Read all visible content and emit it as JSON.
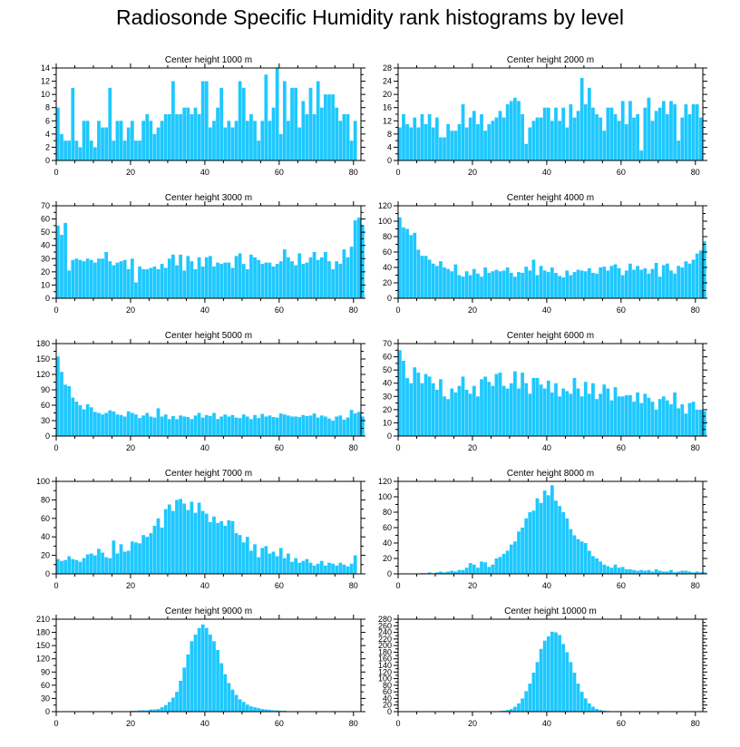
{
  "title": "Radiosonde Specific Humidity rank histograms by level",
  "colors": {
    "bar": "#1ec8ff",
    "bar_edge": "#0fb4ec",
    "axis": "#000000"
  },
  "chart_data": [
    {
      "type": "bar",
      "title": "Center height 1000 m",
      "xlabel": "",
      "ylabel": "",
      "xlim": [
        0,
        82
      ],
      "ylim": [
        0,
        14
      ],
      "yticks": [
        0,
        2,
        4,
        6,
        8,
        10,
        12,
        14
      ],
      "xticks": [
        0,
        20,
        40,
        60,
        80
      ],
      "values": [
        8,
        4,
        3,
        3,
        11,
        3,
        2,
        6,
        6,
        3,
        2,
        6,
        5,
        5,
        11,
        3,
        6,
        6,
        3,
        5,
        6,
        3,
        3,
        6,
        7,
        6,
        4,
        5,
        6,
        7,
        7,
        12,
        7,
        7,
        8,
        8,
        7,
        8,
        7,
        12,
        12,
        5,
        6,
        8,
        11,
        5,
        6,
        5,
        6,
        12,
        11,
        6,
        7,
        6,
        3,
        6,
        13,
        6,
        8,
        14,
        4,
        12,
        6,
        11,
        11,
        5,
        9,
        7,
        11,
        7,
        12,
        8,
        10,
        10,
        10,
        8,
        6,
        7,
        7,
        3,
        6
      ]
    },
    {
      "type": "bar",
      "title": "Center height 2000 m",
      "xlabel": "",
      "ylabel": "",
      "xlim": [
        0,
        82
      ],
      "ylim": [
        0,
        28
      ],
      "yticks": [
        0,
        4,
        8,
        12,
        16,
        20,
        24,
        28
      ],
      "xticks": [
        0,
        20,
        40,
        60,
        80
      ],
      "values": [
        10,
        14,
        11,
        10,
        13,
        10,
        14,
        11,
        14,
        10,
        13,
        7,
        7,
        11,
        9,
        9,
        11,
        17,
        10,
        13,
        15,
        11,
        14,
        9,
        11,
        12,
        13,
        15,
        13,
        17,
        18,
        19,
        18,
        14,
        5,
        10,
        12,
        13,
        13,
        16,
        16,
        12,
        16,
        12,
        16,
        10,
        17,
        13,
        15,
        25,
        17,
        22,
        16,
        14,
        13,
        9,
        16,
        16,
        14,
        12,
        18,
        11,
        18,
        13,
        14,
        3,
        16,
        19,
        12,
        15,
        16,
        18,
        14,
        18,
        17,
        6,
        13,
        17,
        14,
        17,
        17,
        13
      ]
    },
    {
      "type": "bar",
      "title": "Center height 3000 m",
      "xlabel": "",
      "ylabel": "",
      "xlim": [
        0,
        82
      ],
      "ylim": [
        0,
        70
      ],
      "yticks": [
        0,
        10,
        20,
        30,
        40,
        50,
        60,
        70
      ],
      "xticks": [
        0,
        20,
        40,
        60,
        80
      ],
      "values": [
        55,
        48,
        57,
        21,
        29,
        30,
        29,
        28,
        30,
        29,
        27,
        30,
        30,
        35,
        28,
        25,
        27,
        28,
        29,
        22,
        30,
        12,
        24,
        22,
        22,
        23,
        24,
        22,
        26,
        23,
        30,
        33,
        25,
        33,
        21,
        32,
        28,
        22,
        31,
        24,
        31,
        32,
        24,
        27,
        26,
        27,
        27,
        23,
        32,
        34,
        26,
        22,
        33,
        31,
        29,
        26,
        27,
        27,
        24,
        26,
        28,
        37,
        31,
        28,
        25,
        34,
        26,
        27,
        31,
        35,
        29,
        31,
        35,
        28,
        22,
        28,
        26,
        37,
        31,
        39,
        59,
        61,
        55
      ]
    },
    {
      "type": "bar",
      "title": "Center height 4000 m",
      "xlabel": "",
      "ylabel": "",
      "xlim": [
        0,
        82
      ],
      "ylim": [
        0,
        120
      ],
      "yticks": [
        0,
        20,
        40,
        60,
        80,
        100,
        120
      ],
      "xticks": [
        0,
        20,
        40,
        60,
        80
      ],
      "values": [
        105,
        92,
        90,
        82,
        85,
        63,
        55,
        55,
        50,
        45,
        42,
        48,
        40,
        38,
        35,
        44,
        30,
        28,
        35,
        30,
        38,
        32,
        28,
        40,
        33,
        35,
        37,
        35,
        36,
        40,
        33,
        28,
        34,
        33,
        41,
        36,
        50,
        30,
        42,
        36,
        34,
        40,
        33,
        29,
        27,
        36,
        30,
        34,
        37,
        36,
        35,
        39,
        33,
        32,
        40,
        41,
        36,
        42,
        44,
        39,
        30,
        36,
        45,
        37,
        42,
        37,
        39,
        32,
        38,
        46,
        28,
        43,
        45,
        36,
        32,
        42,
        40,
        48,
        45,
        50,
        58,
        62,
        74
      ]
    },
    {
      "type": "bar",
      "title": "Center height 5000 m",
      "xlabel": "",
      "ylabel": "",
      "xlim": [
        0,
        82
      ],
      "ylim": [
        0,
        180
      ],
      "yticks": [
        0,
        30,
        60,
        90,
        120,
        150,
        180
      ],
      "xticks": [
        0,
        20,
        40,
        60,
        80
      ],
      "values": [
        155,
        125,
        100,
        97,
        75,
        67,
        60,
        52,
        62,
        56,
        47,
        45,
        42,
        45,
        50,
        48,
        42,
        41,
        38,
        48,
        45,
        42,
        35,
        40,
        45,
        38,
        36,
        54,
        38,
        42,
        33,
        39,
        33,
        40,
        38,
        37,
        33,
        40,
        45,
        36,
        41,
        39,
        45,
        33,
        38,
        42,
        38,
        41,
        36,
        35,
        42,
        38,
        33,
        41,
        35,
        43,
        38,
        40,
        37,
        36,
        44,
        42,
        40,
        38,
        38,
        37,
        41,
        39,
        40,
        44,
        36,
        40,
        38,
        34,
        30,
        38,
        40,
        32,
        36,
        51,
        44,
        47,
        38
      ]
    },
    {
      "type": "bar",
      "title": "Center height 6000 m",
      "xlabel": "",
      "ylabel": "",
      "xlim": [
        0,
        82
      ],
      "ylim": [
        0,
        70
      ],
      "yticks": [
        0,
        10,
        20,
        30,
        40,
        50,
        60,
        70
      ],
      "xticks": [
        0,
        20,
        40,
        60,
        80
      ],
      "values": [
        65,
        57,
        44,
        40,
        52,
        48,
        40,
        47,
        45,
        40,
        35,
        43,
        30,
        28,
        36,
        33,
        38,
        45,
        35,
        32,
        38,
        30,
        43,
        45,
        41,
        38,
        47,
        48,
        38,
        36,
        40,
        49,
        36,
        48,
        40,
        32,
        44,
        44,
        39,
        36,
        42,
        33,
        40,
        30,
        36,
        34,
        32,
        44,
        36,
        30,
        41,
        32,
        40,
        28,
        32,
        39,
        36,
        27,
        37,
        30,
        30,
        31,
        31,
        26,
        33,
        25,
        32,
        29,
        26,
        20,
        28,
        30,
        27,
        24,
        33,
        21,
        24,
        17,
        25,
        26,
        20,
        20,
        19
      ]
    },
    {
      "type": "bar",
      "title": "Center height 7000 m",
      "xlabel": "",
      "ylabel": "",
      "xlim": [
        0,
        82
      ],
      "ylim": [
        0,
        100
      ],
      "yticks": [
        0,
        20,
        40,
        60,
        80,
        100
      ],
      "xticks": [
        0,
        20,
        40,
        60,
        80
      ],
      "values": [
        16,
        14,
        15,
        19,
        16,
        15,
        13,
        17,
        21,
        22,
        20,
        27,
        23,
        18,
        17,
        36,
        22,
        32,
        24,
        25,
        35,
        34,
        33,
        42,
        40,
        44,
        52,
        60,
        50,
        70,
        75,
        68,
        80,
        81,
        76,
        69,
        78,
        66,
        77,
        68,
        65,
        56,
        62,
        55,
        57,
        52,
        58,
        57,
        44,
        42,
        34,
        40,
        25,
        32,
        18,
        28,
        30,
        22,
        24,
        19,
        28,
        17,
        22,
        13,
        17,
        12,
        14,
        16,
        12,
        9,
        11,
        14,
        9,
        12,
        11,
        9,
        12,
        10,
        8,
        11,
        20
      ]
    },
    {
      "type": "bar",
      "title": "Center height 8000 m",
      "xlabel": "",
      "ylabel": "",
      "xlim": [
        0,
        82
      ],
      "ylim": [
        0,
        120
      ],
      "yticks": [
        0,
        20,
        40,
        60,
        80,
        100,
        120
      ],
      "xticks": [
        0,
        20,
        40,
        60,
        80
      ],
      "values": [
        0,
        0,
        0,
        0,
        0,
        0,
        1,
        1,
        2,
        1,
        2,
        3,
        2,
        3,
        4,
        3,
        5,
        5,
        8,
        14,
        12,
        8,
        16,
        15,
        9,
        12,
        20,
        22,
        26,
        30,
        38,
        42,
        55,
        60,
        72,
        80,
        82,
        98,
        92,
        108,
        102,
        115,
        95,
        88,
        80,
        72,
        58,
        50,
        45,
        42,
        40,
        30,
        23,
        20,
        16,
        12,
        10,
        8,
        12,
        8,
        9,
        6,
        6,
        5,
        4,
        5,
        4,
        5,
        3,
        6,
        4,
        3,
        3,
        5,
        2,
        3,
        4,
        4,
        3,
        2,
        3,
        2,
        2
      ]
    },
    {
      "type": "bar",
      "title": "Center height 9000 m",
      "xlabel": "",
      "ylabel": "",
      "xlim": [
        0,
        82
      ],
      "ylim": [
        0,
        210
      ],
      "yticks": [
        0,
        30,
        60,
        90,
        120,
        150,
        180,
        210
      ],
      "xticks": [
        0,
        20,
        40,
        60,
        80
      ],
      "values": [
        0,
        0,
        0,
        0,
        0,
        0,
        0,
        0,
        0,
        0,
        0,
        0,
        0,
        0,
        0,
        0,
        0,
        1,
        1,
        1,
        2,
        2,
        3,
        3,
        3,
        5,
        5,
        6,
        10,
        15,
        22,
        32,
        45,
        70,
        100,
        130,
        160,
        175,
        190,
        198,
        190,
        175,
        160,
        140,
        110,
        85,
        65,
        50,
        38,
        28,
        22,
        16,
        12,
        10,
        8,
        6,
        5,
        4,
        3,
        3,
        2,
        2,
        1,
        1,
        1,
        1,
        1,
        0,
        0,
        0,
        0,
        0,
        0,
        0,
        0,
        0,
        0,
        0,
        0,
        0,
        0
      ]
    },
    {
      "type": "bar",
      "title": "Center height 10000 m",
      "xlabel": "",
      "ylabel": "",
      "xlim": [
        0,
        82
      ],
      "ylim": [
        0,
        280
      ],
      "yticks": [
        0,
        20,
        40,
        60,
        80,
        100,
        120,
        140,
        160,
        180,
        200,
        220,
        240,
        260,
        280
      ],
      "xticks": [
        0,
        20,
        40,
        60,
        80
      ],
      "values": [
        0,
        0,
        0,
        0,
        0,
        0,
        0,
        0,
        0,
        0,
        0,
        0,
        0,
        0,
        0,
        0,
        0,
        0,
        0,
        0,
        0,
        0,
        0,
        0,
        0,
        1,
        1,
        2,
        3,
        5,
        8,
        15,
        25,
        40,
        62,
        85,
        118,
        150,
        190,
        215,
        228,
        242,
        240,
        232,
        205,
        180,
        150,
        118,
        85,
        60,
        40,
        25,
        15,
        8,
        5,
        3,
        2,
        1,
        1,
        1,
        0,
        0,
        0,
        0,
        0,
        0,
        0,
        0,
        0,
        0,
        0,
        0,
        0,
        0,
        0,
        0,
        0,
        0,
        0,
        0,
        0,
        0
      ]
    }
  ]
}
